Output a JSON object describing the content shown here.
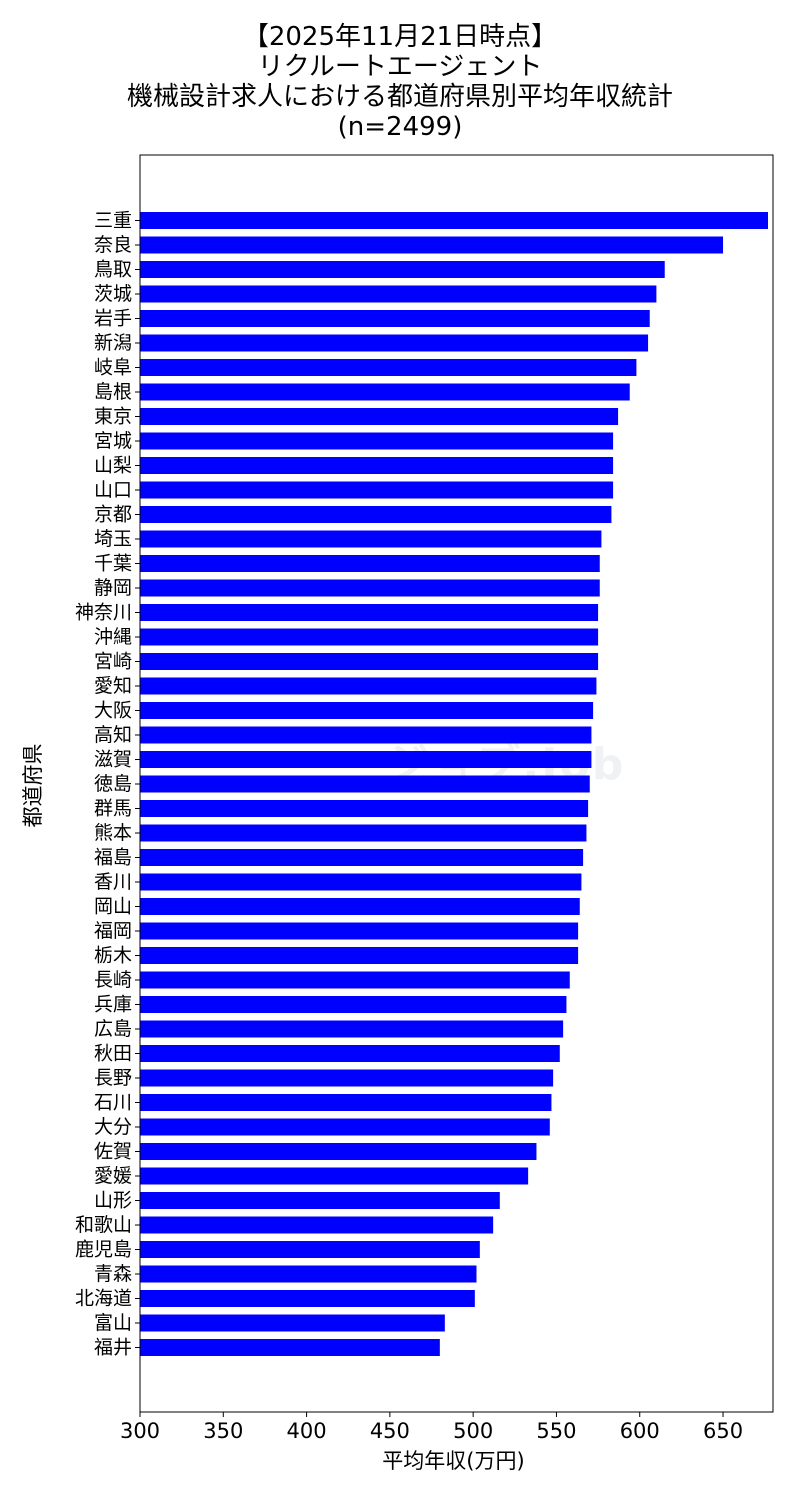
{
  "chart_data": {
    "type": "bar",
    "orientation": "horizontal",
    "title_lines": [
      "【2025年11月21日時点】",
      "リクルートエージェント",
      "機械設計求人における都道府県別平均年収統計",
      "(n=2499)"
    ],
    "xlabel": "平均年収(万円)",
    "ylabel": "都道府県",
    "xlim": [
      300,
      680
    ],
    "xticks": [
      300,
      350,
      400,
      450,
      500,
      550,
      600,
      650
    ],
    "grid": false,
    "bar_color": "#0000ff",
    "categories": [
      "三重",
      "奈良",
      "鳥取",
      "茨城",
      "岩手",
      "新潟",
      "岐阜",
      "島根",
      "東京",
      "宮城",
      "山梨",
      "山口",
      "京都",
      "埼玉",
      "千葉",
      "静岡",
      "神奈川",
      "沖縄",
      "宮崎",
      "愛知",
      "大阪",
      "高知",
      "滋賀",
      "徳島",
      "群馬",
      "熊本",
      "福島",
      "香川",
      "岡山",
      "福岡",
      "栃木",
      "長崎",
      "兵庫",
      "広島",
      "秋田",
      "長野",
      "石川",
      "大分",
      "佐賀",
      "愛媛",
      "山形",
      "和歌山",
      "鹿児島",
      "青森",
      "北海道",
      "富山",
      "福井"
    ],
    "values": [
      677,
      650,
      615,
      610,
      606,
      605,
      598,
      594,
      587,
      584,
      584,
      584,
      583,
      577,
      576,
      576,
      575,
      575,
      575,
      574,
      572,
      571,
      571,
      570,
      569,
      568,
      566,
      565,
      564,
      563,
      563,
      558,
      556,
      554,
      552,
      548,
      547,
      546,
      538,
      533,
      516,
      512,
      504,
      502,
      501,
      483,
      480
    ]
  },
  "watermark": "ジョブ.Job"
}
